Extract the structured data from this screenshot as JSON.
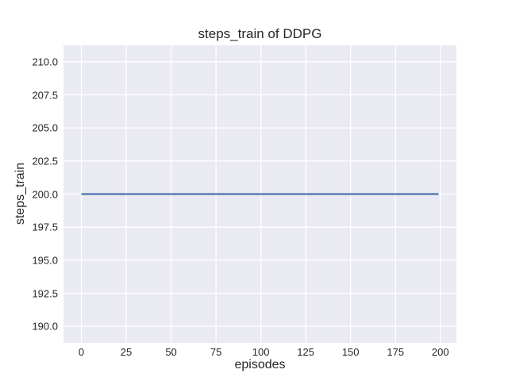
{
  "chart_data": {
    "type": "line",
    "title": "steps_train of DDPG",
    "xlabel": "episodes",
    "ylabel": "steps_train",
    "x_tick_labels": [
      "0",
      "25",
      "50",
      "75",
      "100",
      "125",
      "150",
      "175",
      "200"
    ],
    "y_tick_labels": [
      "190.0",
      "192.5",
      "195.0",
      "197.5",
      "200.0",
      "202.5",
      "205.0",
      "207.5",
      "210.0"
    ],
    "xlim": [
      -9.95,
      208.95
    ],
    "ylim": [
      188.75,
      211.25
    ],
    "grid": true,
    "legend": "none",
    "style": "seaborn-darkgrid",
    "series": [
      {
        "name": "steps_train",
        "x": [
          0,
          199
        ],
        "y": [
          200,
          200
        ],
        "color": "#4c72b0",
        "shape": "constant horizontal line at 200"
      }
    ],
    "colors": {
      "figure_background": "#ffffff",
      "plot_background": "#eaeaf2",
      "gridline": "#ffffff",
      "text": "#262626"
    }
  }
}
